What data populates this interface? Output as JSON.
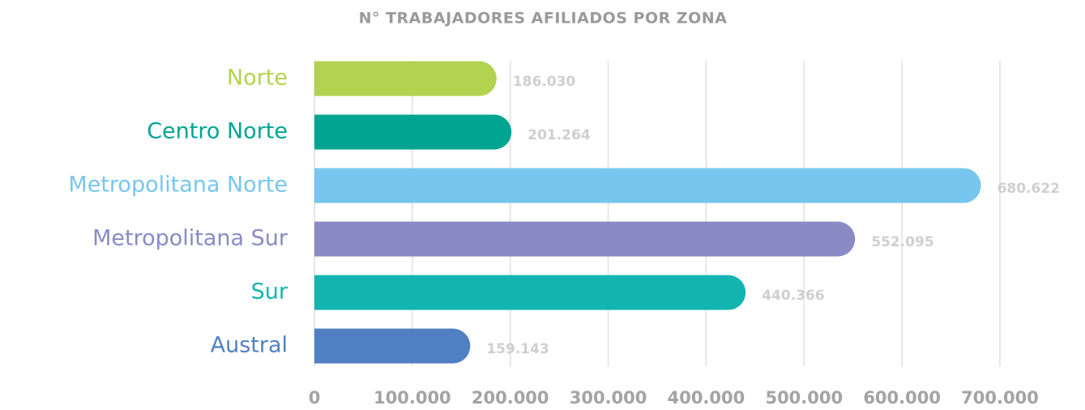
{
  "chart_data": {
    "type": "barh",
    "title": "N° TRABAJADORES AFILIADOS POR ZONA",
    "categories": [
      "Norte",
      "Centro Norte",
      "Metropolitana Norte",
      "Metropolitana Sur",
      "Sur",
      "Austral"
    ],
    "values": [
      186030,
      201264,
      680622,
      552095,
      440366,
      159143
    ],
    "value_labels": [
      "186.030",
      "201.264",
      "680.622",
      "552.095",
      "440.366",
      "159.143"
    ],
    "colors": [
      "#b1d350",
      "#00a592",
      "#78c6ef",
      "#8a8ac4",
      "#12b5b0",
      "#5080c3"
    ],
    "xlim": [
      0,
      700000
    ],
    "xticks": [
      0,
      {
        "value": 100000,
        "label": "100.000"
      },
      {
        "value": 200000,
        "label": "200.000"
      },
      {
        "value": 300000,
        "label": "300.000"
      },
      {
        "value": 400000,
        "label": "400.000"
      },
      {
        "value": 500000,
        "label": "500.000"
      },
      {
        "value": 600000,
        "label": "600.000"
      },
      {
        "value": 700000,
        "label": "700.000"
      }
    ],
    "grid": true
  }
}
